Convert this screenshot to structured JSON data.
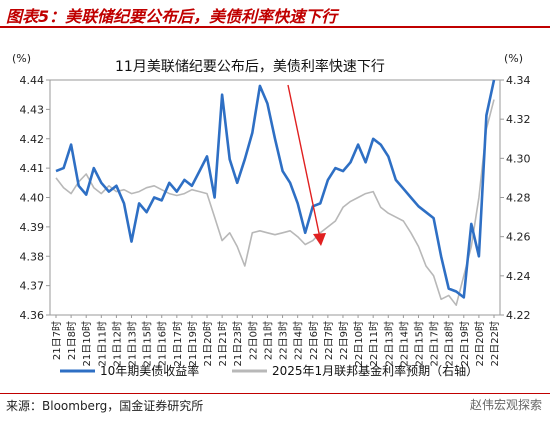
{
  "figure": {
    "title": "图表5：美联储纪要公布后，美债利率快速下行",
    "source": "来源：Bloomberg，国金证券研究所",
    "watermark": "赵伟宏观探索"
  },
  "chart_data": {
    "type": "line",
    "title": "",
    "annotation": "11月美联储纪要公布后，美债利率快速下行",
    "left_unit": "(%)",
    "right_unit": "(%)",
    "xlabel": "",
    "left_ylim": [
      4.36,
      4.44
    ],
    "left_yticks": [
      4.36,
      4.37,
      4.38,
      4.39,
      4.4,
      4.41,
      4.42,
      4.43,
      4.44
    ],
    "right_ylim": [
      4.22,
      4.34
    ],
    "right_yticks": [
      4.22,
      4.24,
      4.26,
      4.28,
      4.3,
      4.32,
      4.34
    ],
    "x_ticks": [
      "21日7时",
      "21日8时",
      "21日10时",
      "21日11时",
      "21日12时",
      "21日13时",
      "21日15时",
      "21日16时",
      "21日17时",
      "21日19时",
      "21日20时",
      "21日21时",
      "21日23时",
      "22日0时",
      "22日1时",
      "22日3时",
      "22日4时",
      "22日6时",
      "22日7时",
      "22日9时",
      "22日10时",
      "22日11时",
      "22日13时",
      "22日14时",
      "22日15时",
      "22日17时",
      "22日18时",
      "22日19时",
      "22日20时",
      "22日22时"
    ],
    "legend_position": "bottom",
    "series": [
      {
        "name": "10年期美债收益率",
        "axis": "left",
        "color": "#2e6fc4",
        "x": [
          0,
          0.5,
          1,
          1.5,
          2,
          2.5,
          3,
          3.5,
          4,
          4.5,
          5,
          5.5,
          6,
          6.5,
          7,
          7.5,
          8,
          8.5,
          9,
          9.5,
          10,
          10.5,
          11,
          11.5,
          12,
          12.5,
          13,
          13.5,
          14,
          14.5,
          15,
          15.5,
          16,
          16.5,
          17,
          17.5,
          18,
          18.5,
          19,
          19.5,
          20,
          20.5,
          21,
          21.5,
          22,
          22.5,
          23,
          23.5,
          24,
          24.5,
          25,
          25.5,
          26,
          26.5,
          27,
          27.5,
          28,
          28.5,
          29
        ],
        "values": [
          4.409,
          4.41,
          4.418,
          4.404,
          4.401,
          4.41,
          4.405,
          4.402,
          4.404,
          4.398,
          4.385,
          4.398,
          4.395,
          4.4,
          4.399,
          4.405,
          4.402,
          4.406,
          4.404,
          4.409,
          4.414,
          4.4,
          4.435,
          4.413,
          4.405,
          4.413,
          4.422,
          4.438,
          4.432,
          4.42,
          4.409,
          4.405,
          4.398,
          4.388,
          4.397,
          4.398,
          4.406,
          4.41,
          4.409,
          4.412,
          4.418,
          4.412,
          4.42,
          4.418,
          4.414,
          4.406,
          4.403,
          4.4,
          4.397,
          4.395,
          4.393,
          4.38,
          4.369,
          4.368,
          4.366,
          4.391,
          4.38,
          4.428,
          4.44
        ]
      },
      {
        "name": "2025年1月联邦基金利率预期（右轴）",
        "axis": "right",
        "color": "#b8b8b8",
        "x": [
          0,
          0.5,
          1,
          1.5,
          2,
          2.5,
          3,
          3.5,
          4,
          4.5,
          5,
          5.5,
          6,
          6.5,
          7,
          7.5,
          8,
          8.5,
          9,
          9.5,
          10,
          10.5,
          11,
          11.5,
          12,
          12.5,
          13,
          13.5,
          14,
          14.5,
          15,
          15.5,
          16,
          16.5,
          17,
          17.5,
          18,
          18.5,
          19,
          19.5,
          20,
          20.5,
          21,
          21.5,
          22,
          22.5,
          23,
          23.5,
          24,
          24.5,
          25,
          25.5,
          26,
          26.5,
          27,
          27.5,
          28,
          28.5,
          29
        ],
        "values": [
          4.29,
          4.285,
          4.282,
          4.288,
          4.292,
          4.285,
          4.282,
          4.286,
          4.283,
          4.284,
          4.282,
          4.283,
          4.285,
          4.286,
          4.284,
          4.282,
          4.281,
          4.282,
          4.284,
          4.283,
          4.282,
          4.27,
          4.258,
          4.262,
          4.255,
          4.245,
          4.262,
          4.263,
          4.262,
          4.261,
          4.262,
          4.263,
          4.26,
          4.256,
          4.258,
          4.262,
          4.265,
          4.268,
          4.275,
          4.278,
          4.28,
          4.282,
          4.283,
          4.275,
          4.272,
          4.27,
          4.268,
          4.262,
          4.255,
          4.245,
          4.24,
          4.228,
          4.23,
          4.225,
          4.24,
          4.255,
          4.28,
          4.315,
          4.33
        ]
      }
    ]
  }
}
